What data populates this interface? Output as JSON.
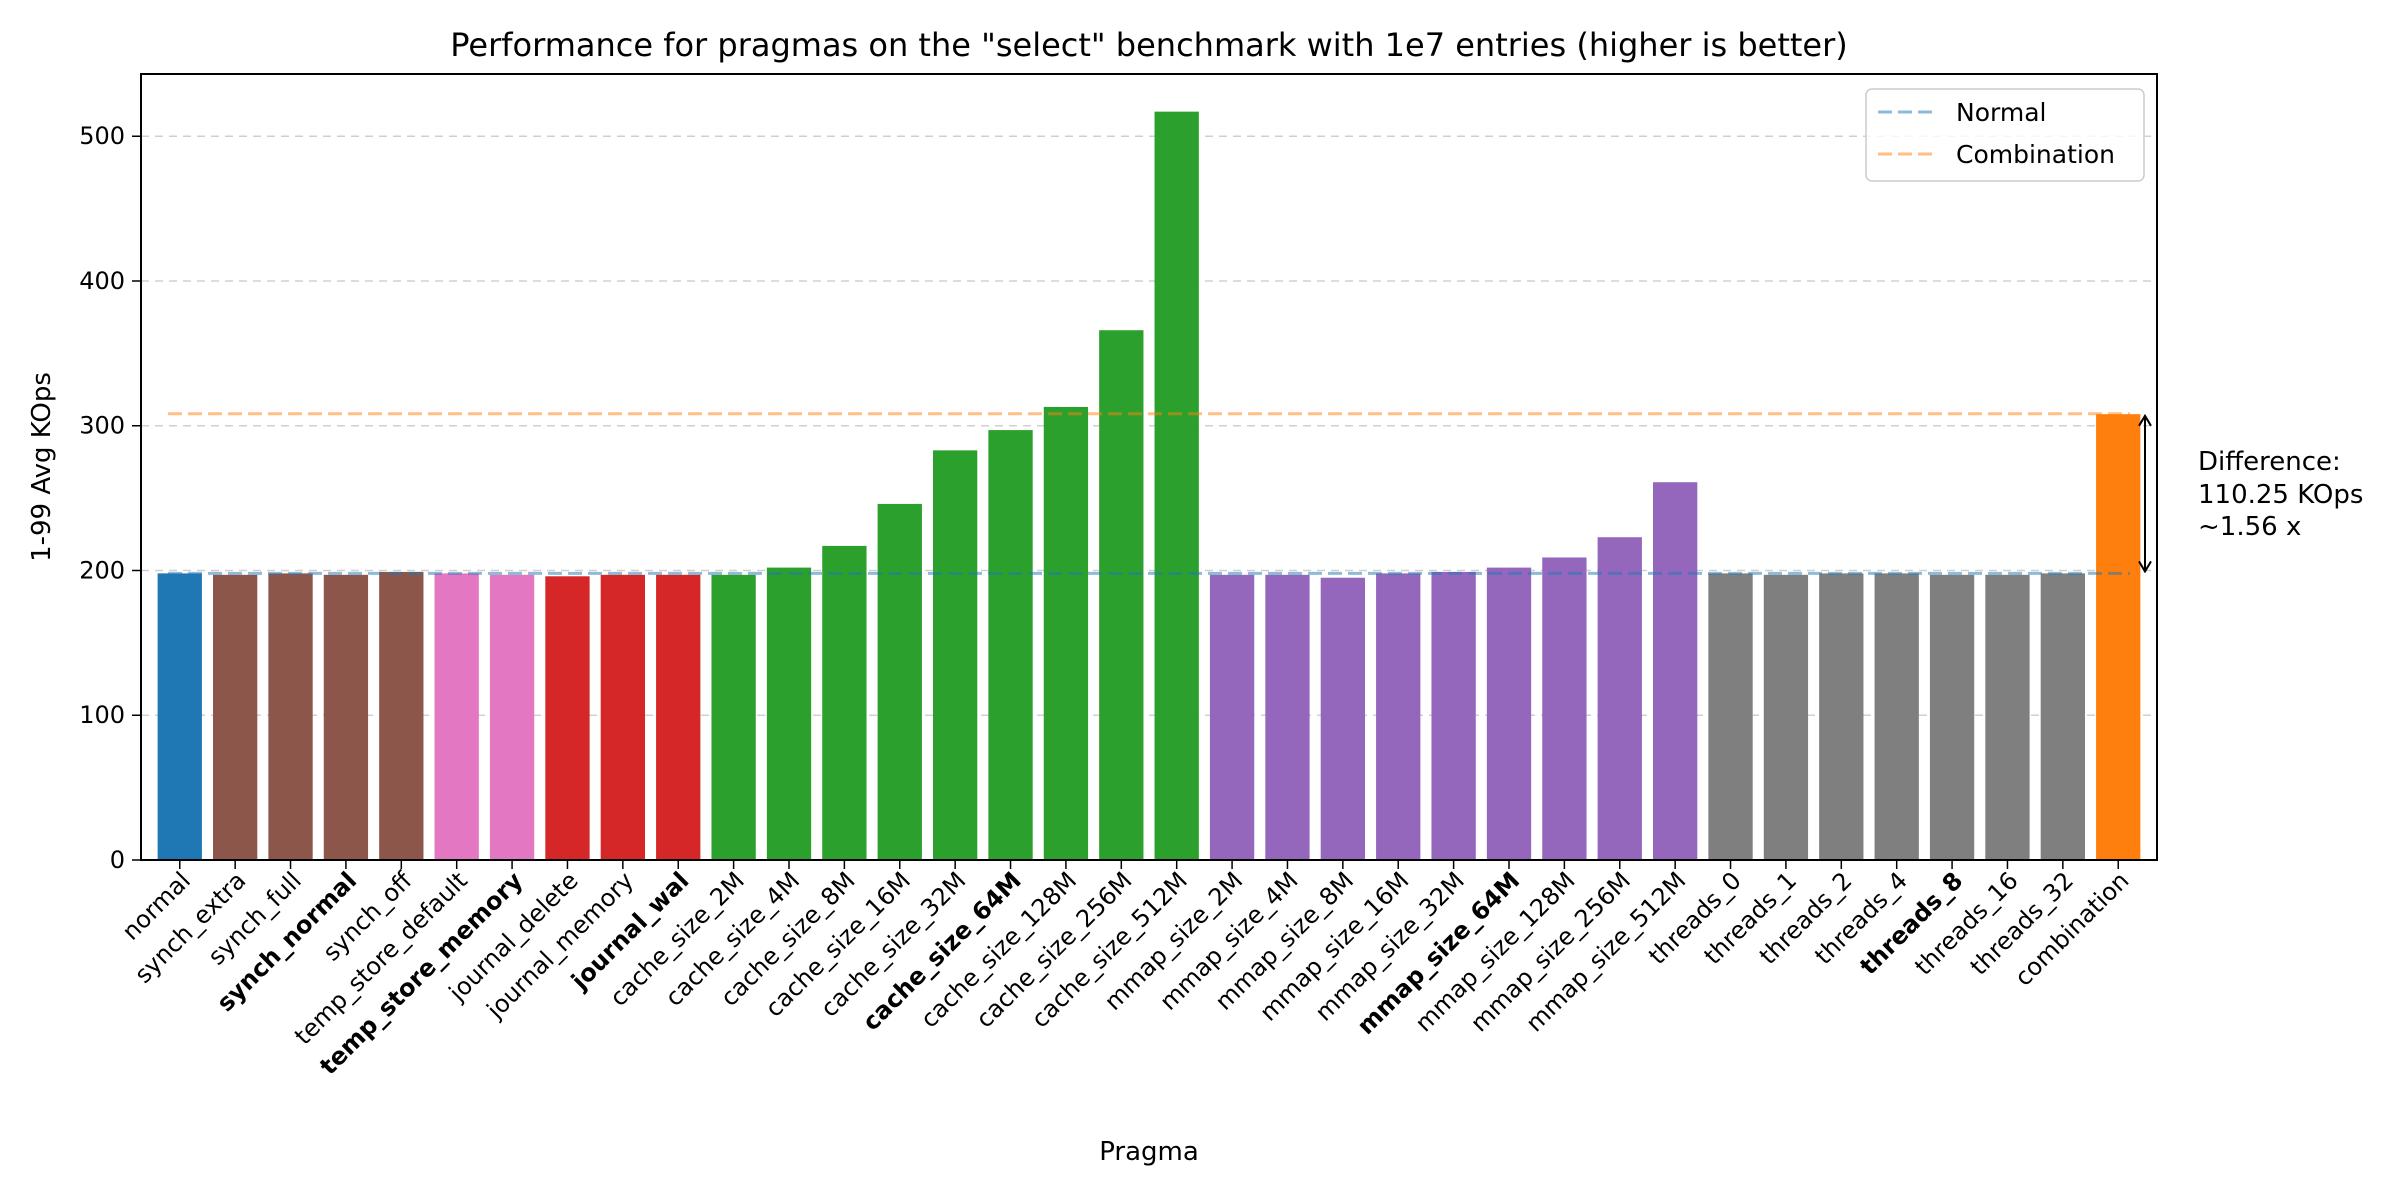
{
  "chart_data": {
    "type": "bar",
    "title": "Performance for pragmas on the \"select\" benchmark with 1e7 entries (higher is better)",
    "xlabel": "Pragma",
    "ylabel": "1-99 Avg KOps",
    "ylim": [
      0,
      543
    ],
    "yticks": [
      0,
      100,
      200,
      300,
      400,
      500
    ],
    "grid": "horizontal dashed",
    "legend_position": "top-right",
    "categories": [
      "normal",
      "synch_extra",
      "synch_full",
      "synch_normal",
      "synch_off",
      "temp_store_default",
      "temp_store_memory",
      "journal_delete",
      "journal_memory",
      "journal_wal",
      "cache_size_2M",
      "cache_size_4M",
      "cache_size_8M",
      "cache_size_16M",
      "cache_size_32M",
      "cache_size_64M",
      "cache_size_128M",
      "cache_size_256M",
      "cache_size_512M",
      "mmap_size_2M",
      "mmap_size_4M",
      "mmap_size_8M",
      "mmap_size_16M",
      "mmap_size_32M",
      "mmap_size_64M",
      "mmap_size_128M",
      "mmap_size_256M",
      "mmap_size_512M",
      "threads_0",
      "threads_1",
      "threads_2",
      "threads_4",
      "threads_8",
      "threads_16",
      "threads_32",
      "combination"
    ],
    "values": [
      198,
      197,
      198,
      197,
      199,
      198,
      197,
      196,
      197,
      197,
      197,
      202,
      217,
      246,
      283,
      297,
      313,
      366,
      517,
      197,
      197,
      195,
      198,
      199,
      202,
      209,
      223,
      261,
      198,
      197,
      198,
      198,
      197,
      197,
      198,
      308
    ],
    "bold_categories": [
      "synch_normal",
      "temp_store_memory",
      "journal_wal",
      "cache_size_64M",
      "mmap_size_64M",
      "threads_8"
    ],
    "bar_colors": [
      "#1f77b4",
      "#8c564b",
      "#8c564b",
      "#8c564b",
      "#8c564b",
      "#e377c2",
      "#e377c2",
      "#d62728",
      "#d62728",
      "#d62728",
      "#2ca02c",
      "#2ca02c",
      "#2ca02c",
      "#2ca02c",
      "#2ca02c",
      "#2ca02c",
      "#2ca02c",
      "#2ca02c",
      "#2ca02c",
      "#9467bd",
      "#9467bd",
      "#9467bd",
      "#9467bd",
      "#9467bd",
      "#9467bd",
      "#9467bd",
      "#9467bd",
      "#9467bd",
      "#7f7f7f",
      "#7f7f7f",
      "#7f7f7f",
      "#7f7f7f",
      "#7f7f7f",
      "#7f7f7f",
      "#7f7f7f",
      "#ff7f0e"
    ],
    "reference_lines": [
      {
        "name": "Normal",
        "value": 198.0,
        "color": "#1f77b4"
      },
      {
        "name": "Combination",
        "value": 308.25,
        "color": "#ff7f0e"
      }
    ],
    "annotation": {
      "lines": [
        "Difference:",
        "110.25 KOps",
        "~1.56 x"
      ]
    }
  }
}
